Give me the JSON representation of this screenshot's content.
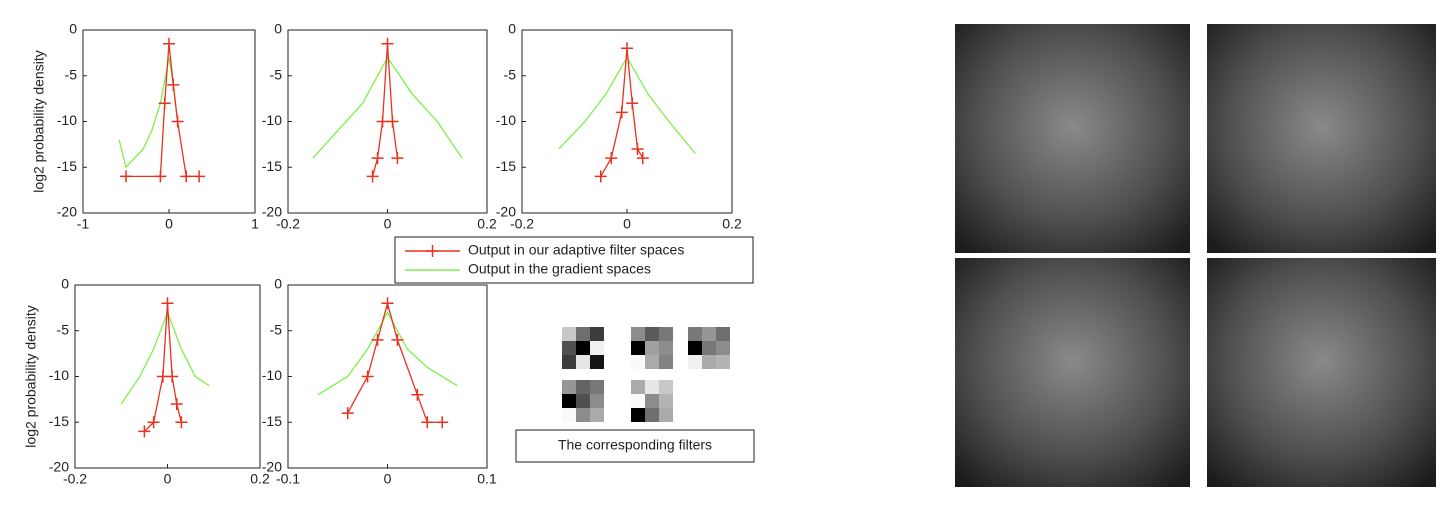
{
  "chart_data": [
    {
      "type": "line",
      "ylabel": "log2 probability density",
      "xlim": [
        -1,
        1
      ],
      "xticks": [
        -1,
        0,
        1
      ],
      "ylim": [
        -20,
        0
      ],
      "yticks": [
        -20,
        -15,
        -10,
        -5,
        0
      ],
      "series": [
        {
          "color": "#e8321e",
          "x": [
            -0.5,
            -0.1,
            -0.05,
            0,
            0.05,
            0.1,
            0.2,
            0.35
          ],
          "values": [
            -16,
            -16,
            -8,
            -1.5,
            -6,
            -10,
            -16,
            -16
          ]
        },
        {
          "color": "#7ef04a",
          "x": [
            -0.58,
            -0.5,
            -0.4,
            -0.3,
            -0.2,
            -0.1,
            0,
            0.05,
            0.1
          ],
          "values": [
            -12,
            -15,
            -14,
            -13,
            -11,
            -8,
            -3,
            -6,
            -10
          ]
        }
      ]
    },
    {
      "type": "line",
      "xlim": [
        -0.2,
        0.2
      ],
      "xticks": [
        -0.2,
        0,
        0.2
      ],
      "ylim": [
        -20,
        0
      ],
      "yticks": [
        -20,
        -15,
        -10,
        -5,
        0
      ],
      "series": [
        {
          "color": "#e8321e",
          "x": [
            -0.03,
            -0.02,
            -0.01,
            0,
            0.01,
            0.02
          ],
          "values": [
            -16,
            -14,
            -10,
            -1.5,
            -10,
            -14
          ]
        },
        {
          "color": "#7ef04a",
          "x": [
            -0.15,
            -0.1,
            -0.05,
            0,
            0.05,
            0.1,
            0.15
          ],
          "values": [
            -14,
            -11,
            -8,
            -3,
            -7,
            -10,
            -14
          ]
        }
      ]
    },
    {
      "type": "line",
      "xlim": [
        -0.2,
        0.2
      ],
      "xticks": [
        -0.2,
        0,
        0.2
      ],
      "ylim": [
        -20,
        0
      ],
      "yticks": [
        -20,
        -15,
        -10,
        -5,
        0
      ],
      "series": [
        {
          "color": "#e8321e",
          "x": [
            -0.05,
            -0.03,
            -0.01,
            0,
            0.01,
            0.02,
            0.03
          ],
          "values": [
            -16,
            -14,
            -9,
            -2,
            -8,
            -13,
            -14
          ]
        },
        {
          "color": "#7ef04a",
          "x": [
            -0.13,
            -0.08,
            -0.04,
            0,
            0.04,
            0.08,
            0.13
          ],
          "values": [
            -13,
            -10,
            -7,
            -3,
            -7,
            -10,
            -13.5
          ]
        }
      ]
    },
    {
      "type": "line",
      "ylabel": "log2 probability density",
      "xlim": [
        -0.2,
        0.2
      ],
      "xticks": [
        -0.2,
        0,
        0.2
      ],
      "ylim": [
        -20,
        0
      ],
      "yticks": [
        -20,
        -15,
        -10,
        -5,
        0
      ],
      "series": [
        {
          "color": "#e8321e",
          "x": [
            -0.05,
            -0.03,
            -0.01,
            0,
            0.01,
            0.02,
            0.03
          ],
          "values": [
            -16,
            -15,
            -10,
            -2,
            -10,
            -13,
            -15
          ]
        },
        {
          "color": "#7ef04a",
          "x": [
            -0.1,
            -0.06,
            -0.03,
            0,
            0.03,
            0.06,
            0.09
          ],
          "values": [
            -13,
            -10,
            -7,
            -3,
            -7,
            -10,
            -11
          ]
        }
      ]
    },
    {
      "type": "line",
      "xlim": [
        -0.1,
        0.1
      ],
      "xticks": [
        -0.1,
        0,
        0.1
      ],
      "ylim": [
        -20,
        0
      ],
      "yticks": [
        -20,
        -15,
        -10,
        -5,
        0
      ],
      "series": [
        {
          "color": "#e8321e",
          "x": [
            -0.04,
            -0.02,
            -0.01,
            0,
            0.01,
            0.03,
            0.04,
            0.055
          ],
          "values": [
            -14,
            -10,
            -6,
            -2,
            -6,
            -12,
            -15,
            -15
          ]
        },
        {
          "color": "#7ef04a",
          "x": [
            -0.07,
            -0.04,
            -0.02,
            0,
            0.02,
            0.04,
            0.07
          ],
          "values": [
            -12,
            -10,
            -7,
            -3,
            -7,
            -9,
            -11
          ]
        }
      ]
    }
  ],
  "legend": {
    "entries": [
      "Output in our adaptive filter spaces",
      "Output in the gradient spaces"
    ]
  },
  "filters_caption": "The corresponding filters"
}
